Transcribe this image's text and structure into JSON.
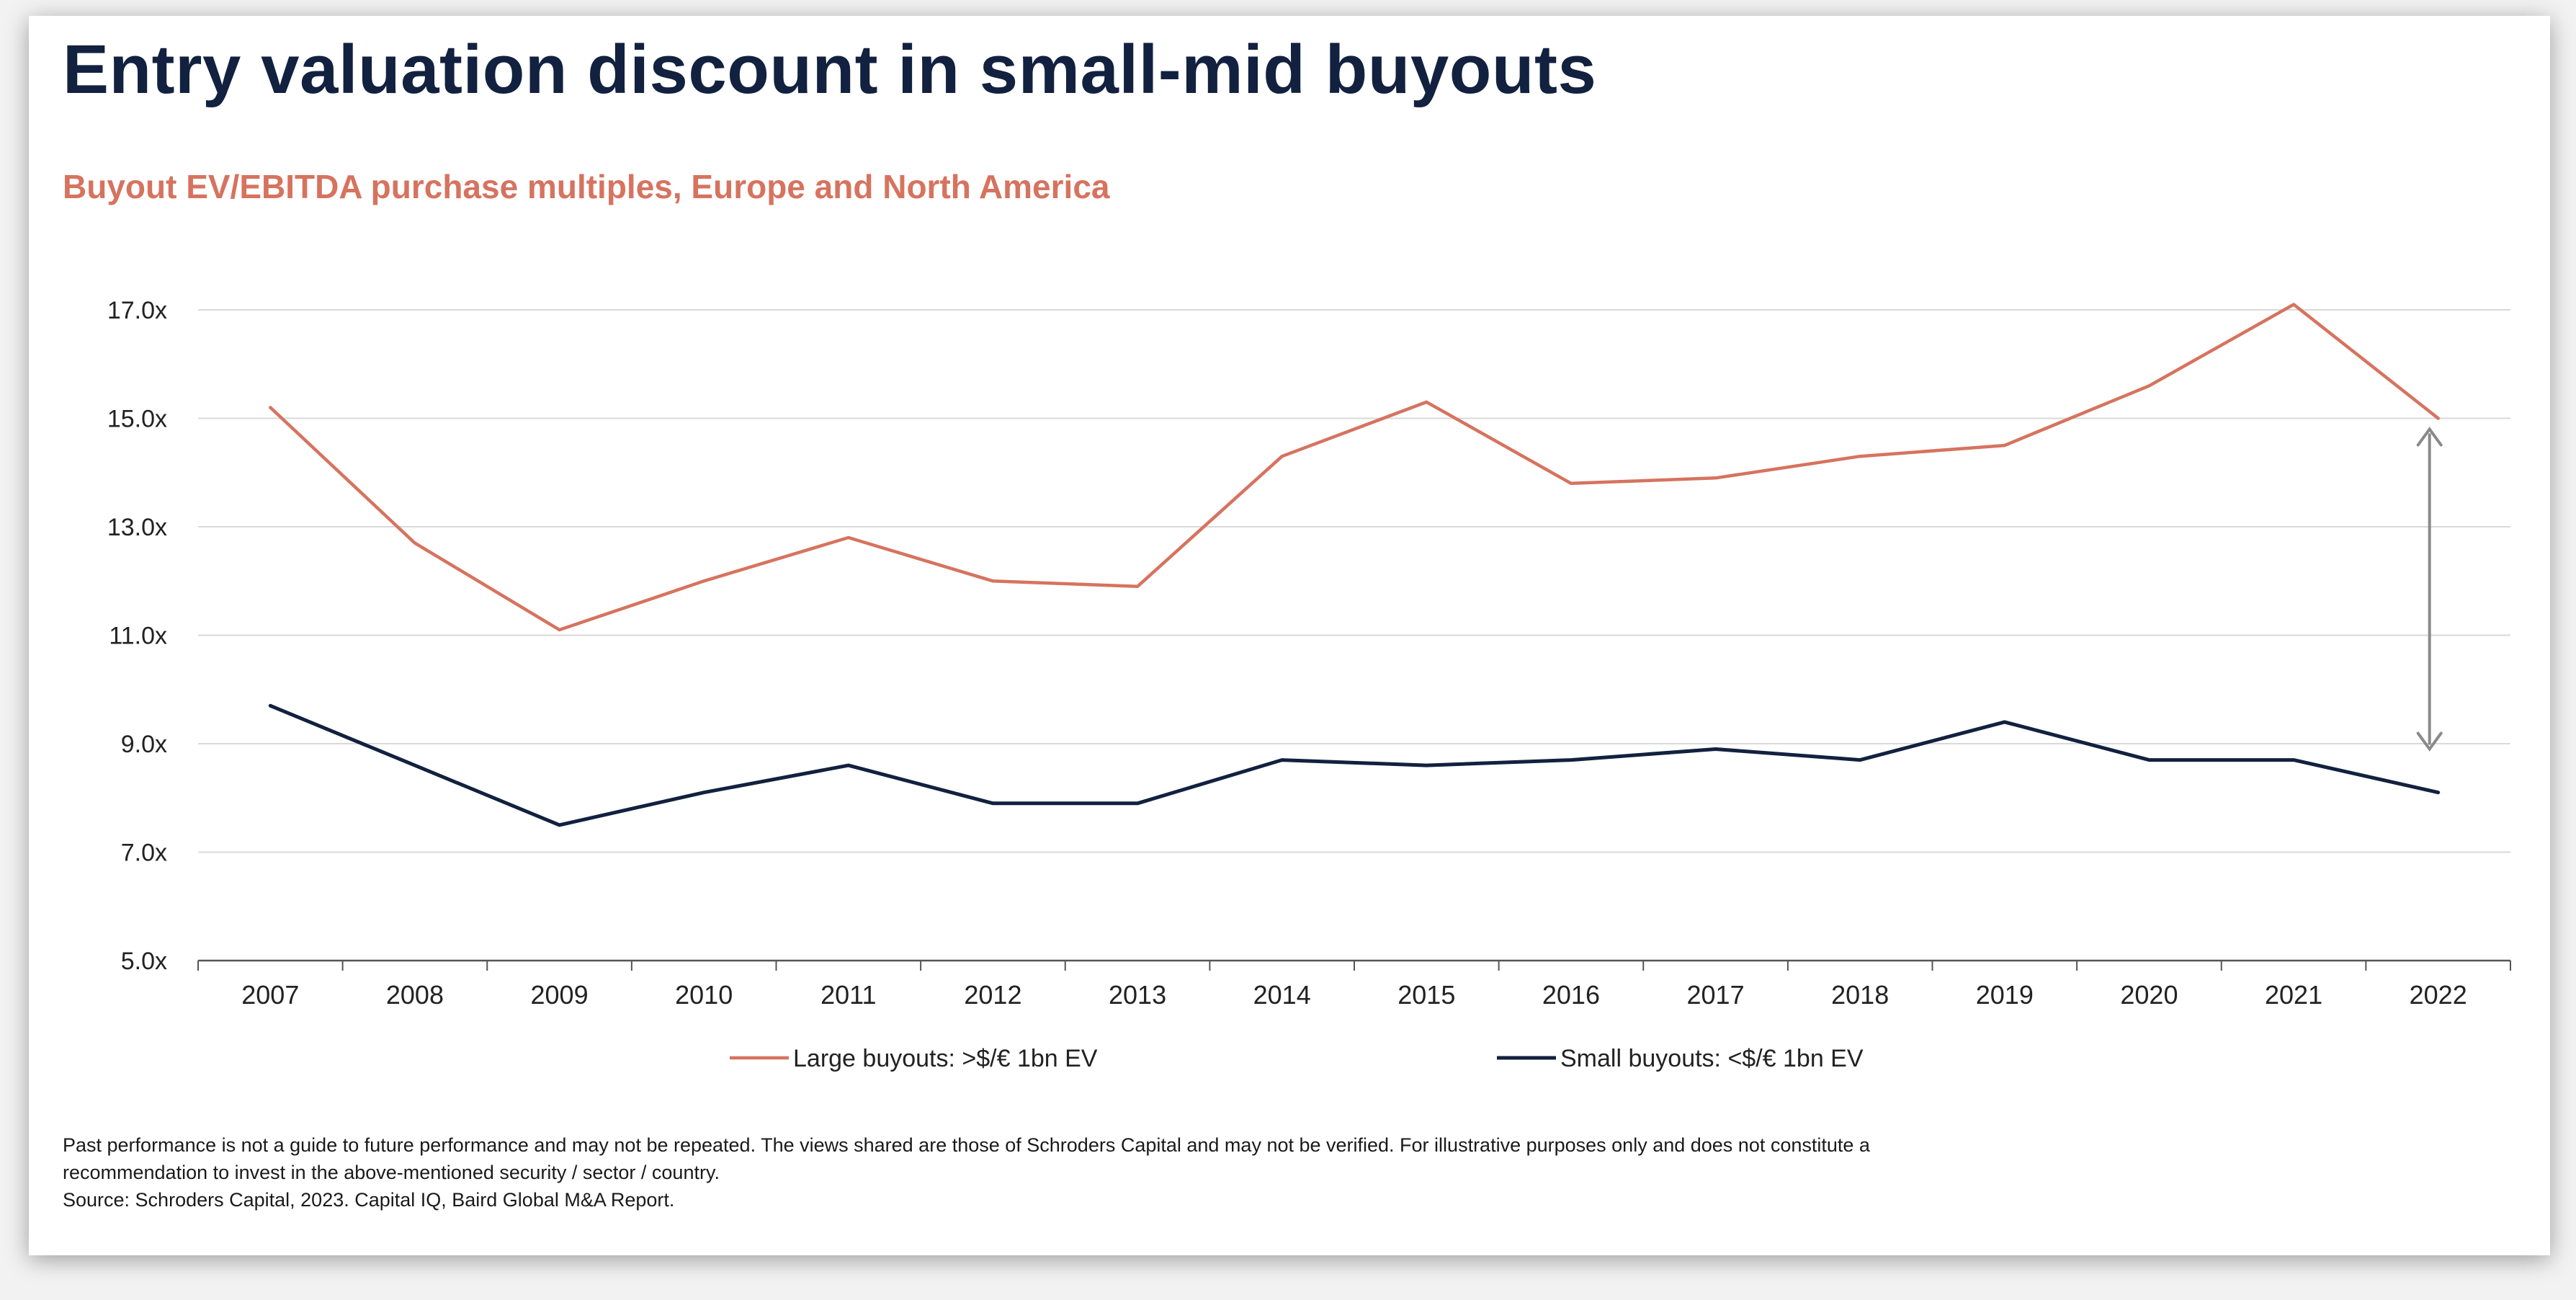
{
  "title": "Entry valuation discount in small-mid buyouts",
  "subtitle": "Buyout EV/EBITDA purchase multiples, Europe and North America",
  "footnote": {
    "line1": "Past performance is not a guide to future performance and may not be repeated. The views shared are those of Schroders Capital and may not be verified. For illustrative purposes only and does not constitute a",
    "line2": "recommendation to invest in the above-mentioned security / sector / country.",
    "line3": "Source: Schroders Capital, 2023. Capital IQ, Baird Global M&A Report."
  },
  "colors": {
    "large": "#d6735f",
    "small": "#12213f",
    "grid": "#d9d9d9",
    "axis": "#555555",
    "arrow": "#8a8a8a"
  },
  "chart_data": {
    "type": "line",
    "x": [
      "2007",
      "2008",
      "2009",
      "2010",
      "2011",
      "2012",
      "2013",
      "2014",
      "2015",
      "2016",
      "2017",
      "2018",
      "2019",
      "2020",
      "2021",
      "2022"
    ],
    "y_ticks": [
      "5.0x",
      "7.0x",
      "9.0x",
      "11.0x",
      "13.0x",
      "15.0x",
      "17.0x"
    ],
    "ylim": [
      5,
      17
    ],
    "grid": true,
    "legend_position": "bottom",
    "series": [
      {
        "name": "Large buyouts: >$/€ 1bn EV",
        "key": "large",
        "values": [
          15.2,
          12.7,
          11.1,
          12.0,
          12.8,
          12.0,
          11.9,
          14.3,
          15.3,
          13.8,
          13.9,
          14.3,
          14.5,
          15.6,
          17.1,
          15.0
        ]
      },
      {
        "name": "Small buyouts: <$/€ 1bn EV",
        "key": "small",
        "values": [
          9.7,
          8.6,
          7.5,
          8.1,
          8.6,
          7.9,
          7.9,
          8.7,
          8.6,
          8.7,
          8.9,
          8.7,
          9.4,
          8.7,
          8.7,
          8.1
        ]
      }
    ],
    "annotation": {
      "type": "double-arrow",
      "x": "2022",
      "y_from": 8.9,
      "y_to": 14.8
    }
  }
}
